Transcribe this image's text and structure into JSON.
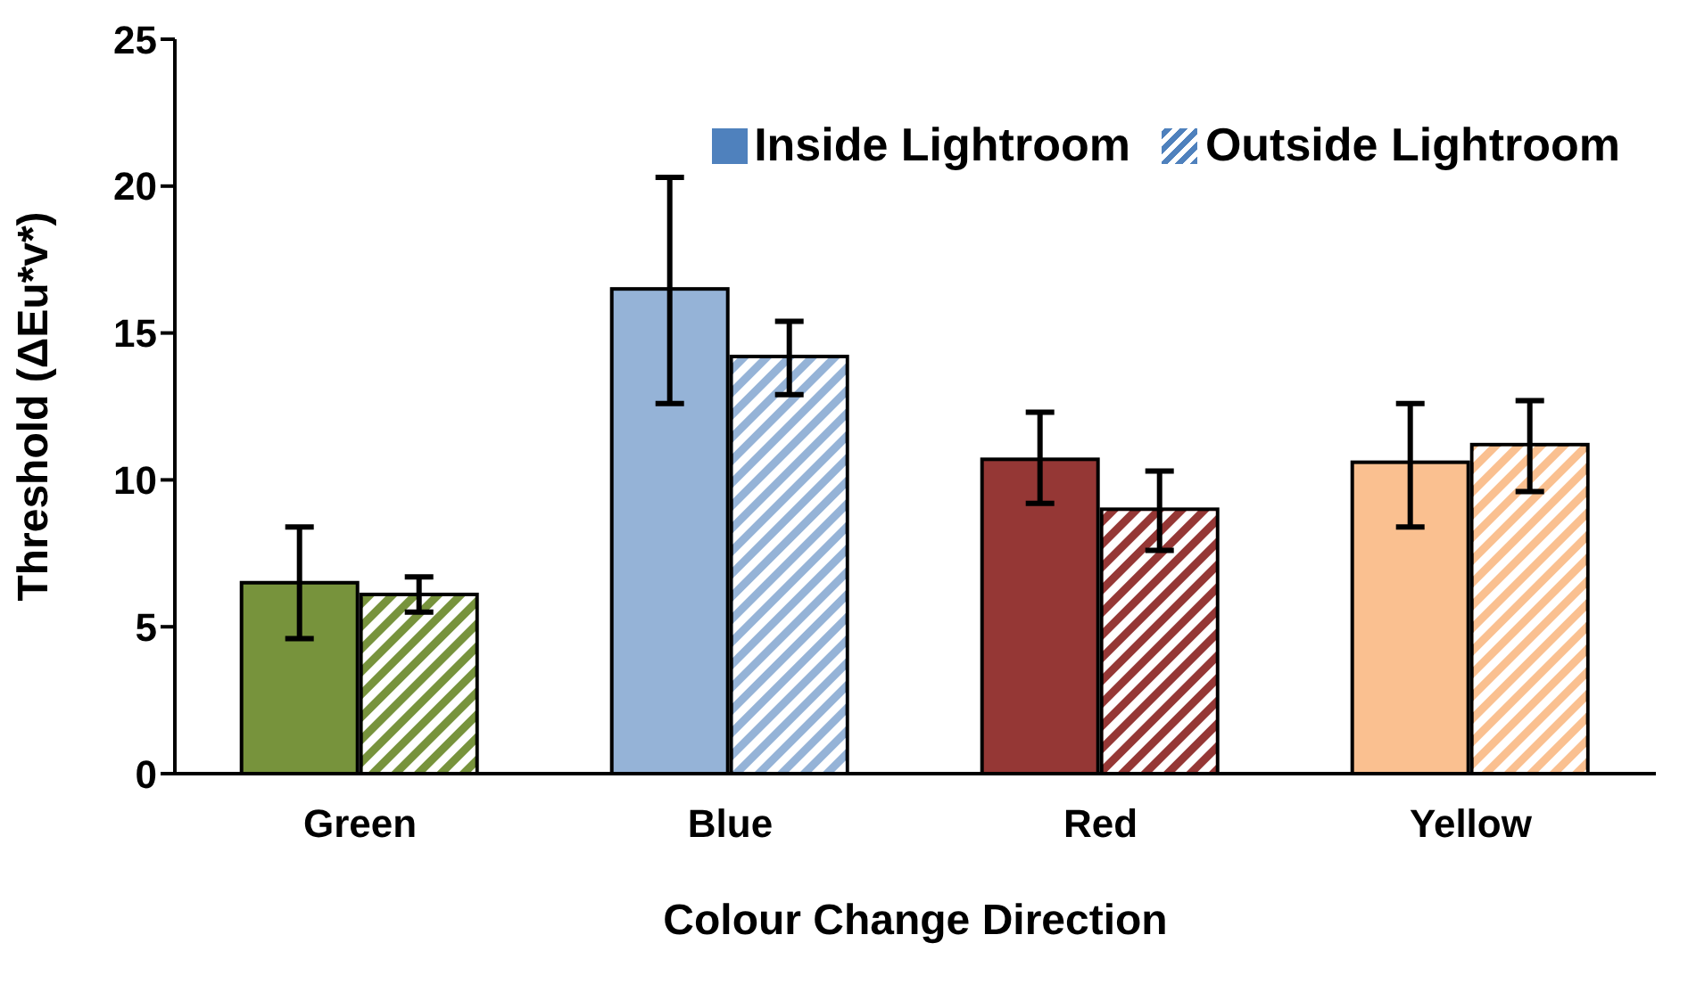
{
  "chart_data": {
    "type": "bar",
    "xlabel": "Colour Change Direction",
    "ylabel": "Threshold (ΔEu*v*)",
    "categories": [
      "Green",
      "Blue",
      "Red",
      "Yellow"
    ],
    "ylim": [
      0,
      25
    ],
    "yticks": [
      0,
      5,
      10,
      15,
      20,
      25
    ],
    "grid": false,
    "legend": "top right",
    "series": [
      {
        "name": "Inside Lightroom",
        "color": "#4f81bd",
        "colors": [
          "#77933c",
          "#95b3d7",
          "#953735",
          "#fac090"
        ],
        "values": [
          6.5,
          16.5,
          10.7,
          10.6
        ],
        "errors": [
          [
            4.6,
            8.4
          ],
          [
            12.6,
            20.3
          ],
          [
            9.2,
            12.3
          ],
          [
            8.4,
            12.6
          ]
        ]
      },
      {
        "name": "Outside Lightroom",
        "color": "#4f81bd",
        "colors": [
          "#77933c",
          "#95b3d7",
          "#953735",
          "#fac090"
        ],
        "values": [
          6.1,
          14.2,
          9.0,
          11.2
        ],
        "errors": [
          [
            5.5,
            6.7
          ],
          [
            12.9,
            15.4
          ],
          [
            7.6,
            10.3
          ],
          [
            9.6,
            12.7
          ]
        ]
      }
    ]
  }
}
